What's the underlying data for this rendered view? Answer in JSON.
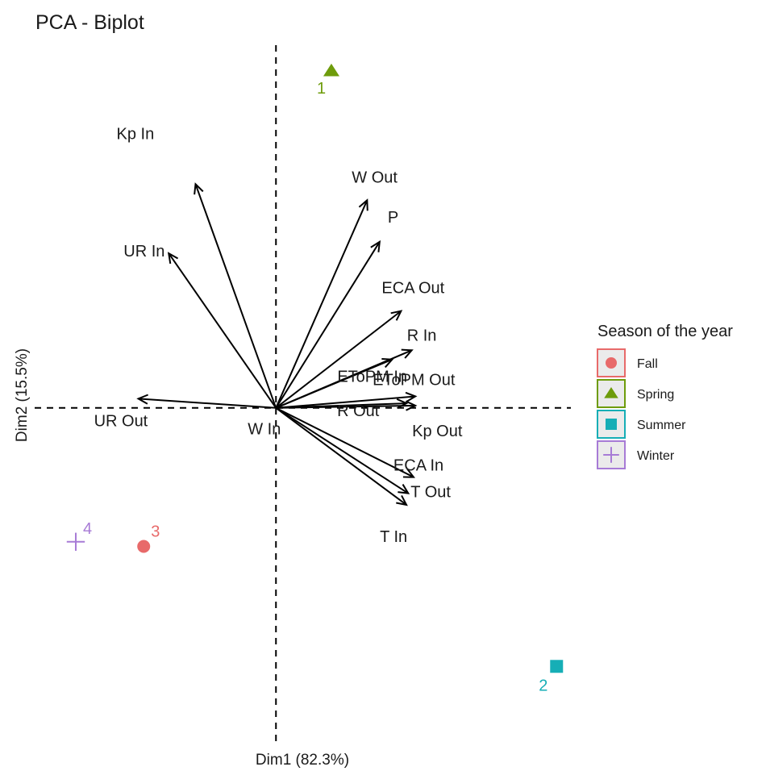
{
  "chart_data": {
    "type": "scatter",
    "subtype": "pca-biplot",
    "title": "PCA - Biplot",
    "xlabel": "Dim1 (82.3%)",
    "ylabel": "Dim2 (15.5%)",
    "xlim": [
      -1.35,
      1.65
    ],
    "ylim": [
      -1.5,
      1.6
    ],
    "grid": false,
    "zero_lines": "dashed",
    "variables": [
      {
        "name": "Kp In",
        "x": -0.45,
        "y": 0.97
      },
      {
        "name": "W Out",
        "x": 0.51,
        "y": 0.9
      },
      {
        "name": "P",
        "x": 0.58,
        "y": 0.72
      },
      {
        "name": "UR In",
        "x": -0.6,
        "y": 0.67
      },
      {
        "name": "ECA Out",
        "x": 0.7,
        "y": 0.42
      },
      {
        "name": "R In",
        "x": 0.76,
        "y": 0.25
      },
      {
        "name": "EToPM In",
        "x": 0.65,
        "y": 0.21
      },
      {
        "name": "EToPM Out",
        "x": 0.78,
        "y": 0.05
      },
      {
        "name": "R Out",
        "x": 0.73,
        "y": 0.02
      },
      {
        "name": "Kp Out",
        "x": 0.78,
        "y": 0.01
      },
      {
        "name": "UR Out",
        "x": -0.77,
        "y": 0.04
      },
      {
        "name": "W In",
        "x": 0.0,
        "y": -0.01
      },
      {
        "name": "ECA In",
        "x": 0.77,
        "y": -0.3
      },
      {
        "name": "T Out",
        "x": 0.74,
        "y": -0.37
      },
      {
        "name": "T In",
        "x": 0.73,
        "y": -0.42
      }
    ],
    "individuals": [
      {
        "label": "1",
        "group": "Spring",
        "x": 0.31,
        "y": 1.46
      },
      {
        "label": "2",
        "group": "Summer",
        "x": 1.57,
        "y": -1.12
      },
      {
        "label": "3",
        "group": "Fall",
        "x": -0.74,
        "y": -0.6
      },
      {
        "label": "4",
        "group": "Winter",
        "x": -1.12,
        "y": -0.58
      }
    ],
    "legend": {
      "title": "Season of the year",
      "position": "right",
      "items": [
        {
          "name": "Fall",
          "color": "#F8766D",
          "shape": "circle"
        },
        {
          "name": "Spring",
          "color": "#7CAE00",
          "shape": "triangle"
        },
        {
          "name": "Summer",
          "color": "#00BFC4",
          "shape": "square"
        },
        {
          "name": "Winter",
          "color": "#C77CFF",
          "shape": "cross"
        }
      ]
    }
  },
  "colors": {
    "Fall": "#E86A6A",
    "Spring": "#6E9C0B",
    "Summer": "#16AEB6",
    "Winter": "#A77BD6",
    "arrow": "#000000"
  }
}
